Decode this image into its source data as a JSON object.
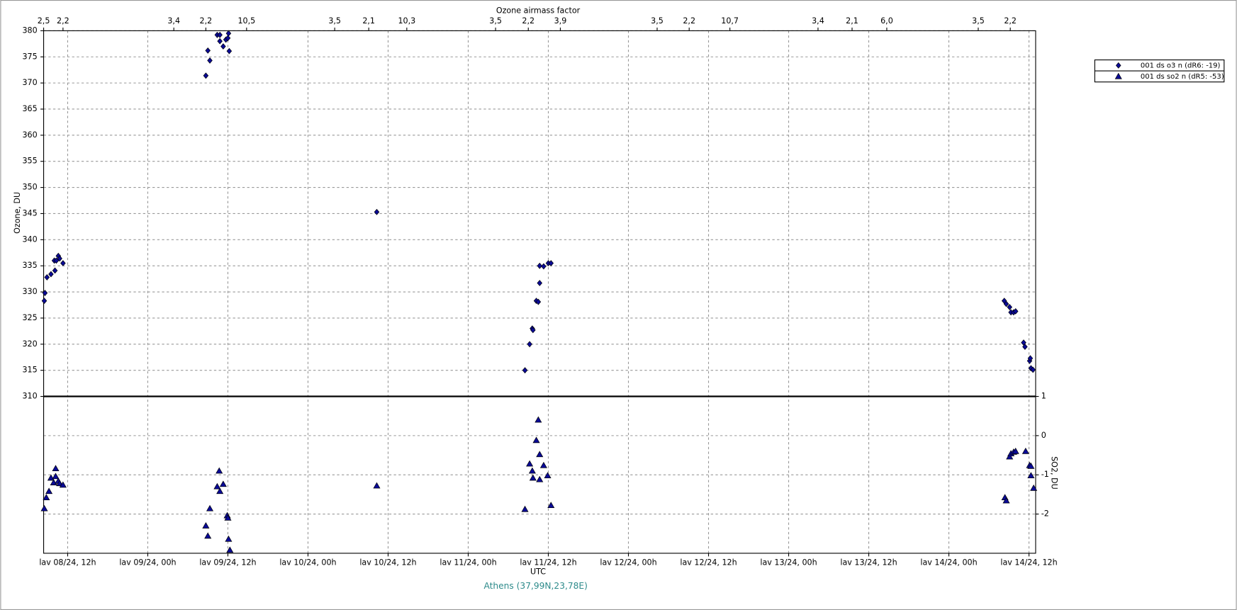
{
  "chart_data": {
    "type": "scatter",
    "top_axis_label": "Ozone airmass factor",
    "top_ticks": [
      {
        "value": 8.4,
        "label": "2,5"
      },
      {
        "value": 11.3,
        "label": "2,2"
      },
      {
        "value": 27.9,
        "label": "3,4"
      },
      {
        "value": 32.7,
        "label": "2,2"
      },
      {
        "value": 38.8,
        "label": "10,5"
      },
      {
        "value": 52.0,
        "label": "3,5"
      },
      {
        "value": 57.1,
        "label": "2,1"
      },
      {
        "value": 62.8,
        "label": "10,3"
      },
      {
        "value": 76.1,
        "label": "3,5"
      },
      {
        "value": 81.0,
        "label": "2,2"
      },
      {
        "value": 85.8,
        "label": "3,9"
      },
      {
        "value": 100.3,
        "label": "3,5"
      },
      {
        "value": 105.1,
        "label": "2,2"
      },
      {
        "value": 111.2,
        "label": "10,7"
      },
      {
        "value": 124.4,
        "label": "3,4"
      },
      {
        "value": 129.5,
        "label": "2,1"
      },
      {
        "value": 134.7,
        "label": "6,0"
      },
      {
        "value": 148.4,
        "label": "3,5"
      },
      {
        "value": 153.2,
        "label": "2,2"
      }
    ],
    "xlabel": "UTC",
    "ylabel": "Ozone, DU",
    "y2label": "SO2, DU",
    "caption": "Athens (37,99N,23,78E)",
    "xlim": [
      8.4,
      157
    ],
    "xticks": [
      {
        "value": 12,
        "label": "lav 08/24, 12h"
      },
      {
        "value": 24,
        "label": "lav 09/24, 00h"
      },
      {
        "value": 36,
        "label": "lav 09/24, 12h"
      },
      {
        "value": 48,
        "label": "lav 10/24, 00h"
      },
      {
        "value": 60,
        "label": "lav 10/24, 12h"
      },
      {
        "value": 72,
        "label": "lav 11/24, 00h"
      },
      {
        "value": 84,
        "label": "lav 11/24, 12h"
      },
      {
        "value": 96,
        "label": "lav 12/24, 00h"
      },
      {
        "value": 108,
        "label": "lav 12/24, 12h"
      },
      {
        "value": 120,
        "label": "lav 13/24, 00h"
      },
      {
        "value": 132,
        "label": "lav 13/24, 12h"
      },
      {
        "value": 144,
        "label": "lav 14/24, 00h"
      },
      {
        "value": 156,
        "label": "lav 14/24, 12h"
      }
    ],
    "ylim": [
      310,
      380
    ],
    "yticks": [
      310,
      315,
      320,
      325,
      330,
      335,
      340,
      345,
      350,
      355,
      360,
      365,
      370,
      375,
      380
    ],
    "y2lim": [
      -3,
      1
    ],
    "y2ticks": [
      -2,
      -1,
      0,
      1
    ],
    "grid": true,
    "legend": "upper right",
    "series": [
      {
        "name": "001 ds o3  n (dR6: -19)",
        "color": "#0a0a96",
        "marker": "diamond",
        "x": [
          8.5,
          8.6,
          8.9,
          9.5,
          10.0,
          10.1,
          10.3,
          10.6,
          10.8,
          11.3,
          32.7,
          33.0,
          33.3,
          34.4,
          34.8,
          34.8,
          35.3,
          35.7,
          36.0,
          36.1,
          36.2,
          58.3,
          80.5,
          81.2,
          81.6,
          81.7,
          82.2,
          82.5,
          82.7,
          82.7,
          83.3,
          84.0,
          84.4,
          152.3,
          152.6,
          153.1,
          153.3,
          153.7,
          154.0,
          155.2,
          155.4,
          156.1,
          156.2,
          156.3,
          156.6
        ],
        "values": [
          328.3,
          329.8,
          332.8,
          333.4,
          336.0,
          334.1,
          336.0,
          336.9,
          336.4,
          335.5,
          371.4,
          376.2,
          374.3,
          379.2,
          379.2,
          378.0,
          377.0,
          378.3,
          378.6,
          379.5,
          376.1,
          345.3,
          315.0,
          320.0,
          323.0,
          322.7,
          328.3,
          328.1,
          331.7,
          335.0,
          334.9,
          335.5,
          335.5,
          328.3,
          327.7,
          327.1,
          326.1,
          326.1,
          326.3,
          320.3,
          319.5,
          316.8,
          317.3,
          315.4,
          315.1
        ]
      },
      {
        "name": "001 ds so2 n (dR5: -53)",
        "color": "#0a0a96",
        "marker": "triangle",
        "axis": "y2",
        "x": [
          8.5,
          8.8,
          9.2,
          9.5,
          9.9,
          10.2,
          10.2,
          10.6,
          10.8,
          11.3,
          32.7,
          33.0,
          33.3,
          34.4,
          34.7,
          34.8,
          35.3,
          35.9,
          36.0,
          36.1,
          36.3,
          58.3,
          80.5,
          81.2,
          81.6,
          81.7,
          82.2,
          82.5,
          82.7,
          82.7,
          83.3,
          83.9,
          84.4,
          152.4,
          152.6,
          153.1,
          153.3,
          153.7,
          154.0,
          155.5,
          156.1,
          156.3,
          156.3,
          156.7
        ],
        "values": [
          -1.86,
          -1.58,
          -1.42,
          -1.08,
          -1.2,
          -0.84,
          -1.04,
          -1.16,
          -1.22,
          -1.26,
          -2.3,
          -2.56,
          -1.86,
          -1.3,
          -0.9,
          -1.42,
          -1.24,
          -2.04,
          -2.1,
          -2.64,
          -2.92,
          -1.28,
          -1.88,
          -0.72,
          -0.9,
          -1.08,
          -0.12,
          0.4,
          -0.48,
          -1.12,
          -0.76,
          -1.02,
          -1.78,
          -1.58,
          -1.66,
          -0.54,
          -0.46,
          -0.42,
          -0.4,
          -0.4,
          -0.76,
          -0.78,
          -1.02,
          -1.34
        ]
      }
    ]
  }
}
